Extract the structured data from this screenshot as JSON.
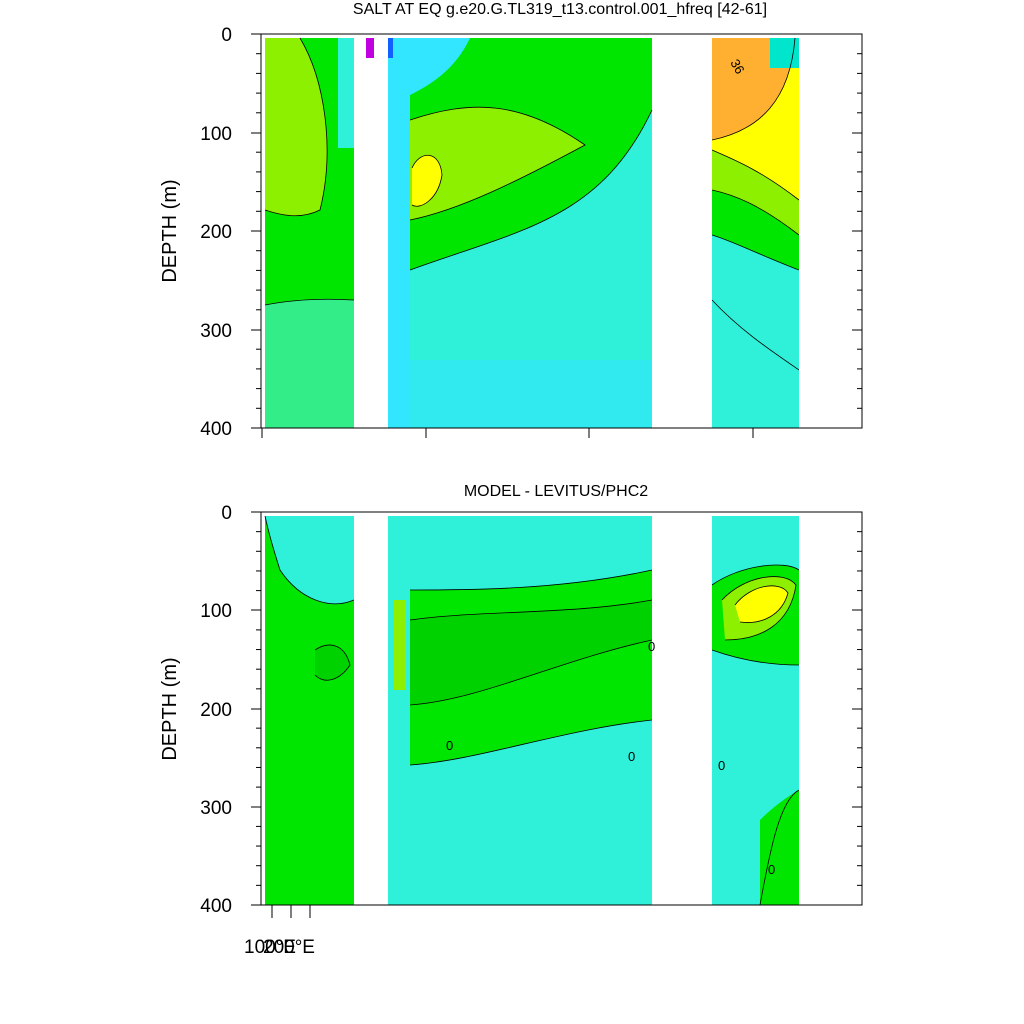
{
  "chart_data": [
    {
      "type": "heatmap",
      "title": "SALT AT EQ g.e20.G.TL319_t13.control.001_hfreq [42-61]",
      "ylabel": "DEPTH (m)",
      "ylim": [
        400,
        0
      ],
      "y_ticks": [
        "0",
        "100",
        "200",
        "300",
        "400"
      ],
      "contour_labels": [
        "36"
      ],
      "grid": false
    },
    {
      "type": "heatmap",
      "title": "MODEL - LEVITUS/PHC2",
      "ylabel": "DEPTH (m)",
      "ylim": [
        400,
        0
      ],
      "y_ticks": [
        "0",
        "100",
        "200",
        "300",
        "400"
      ],
      "x_tick_labels": [
        "100°E",
        "200°E"
      ],
      "contour_labels": [
        "0",
        "0",
        "0",
        "0",
        "0"
      ],
      "grid": false
    }
  ],
  "colors": {
    "cyan_light": "#2ff0d8",
    "cyan": "#33e6ff",
    "green": "#00e600",
    "green_dark": "#00d200",
    "lime": "#8cf000",
    "yellow": "#ffff00",
    "orange": "#ffb030",
    "purple": "#c000e0",
    "blue": "#1060ff"
  }
}
